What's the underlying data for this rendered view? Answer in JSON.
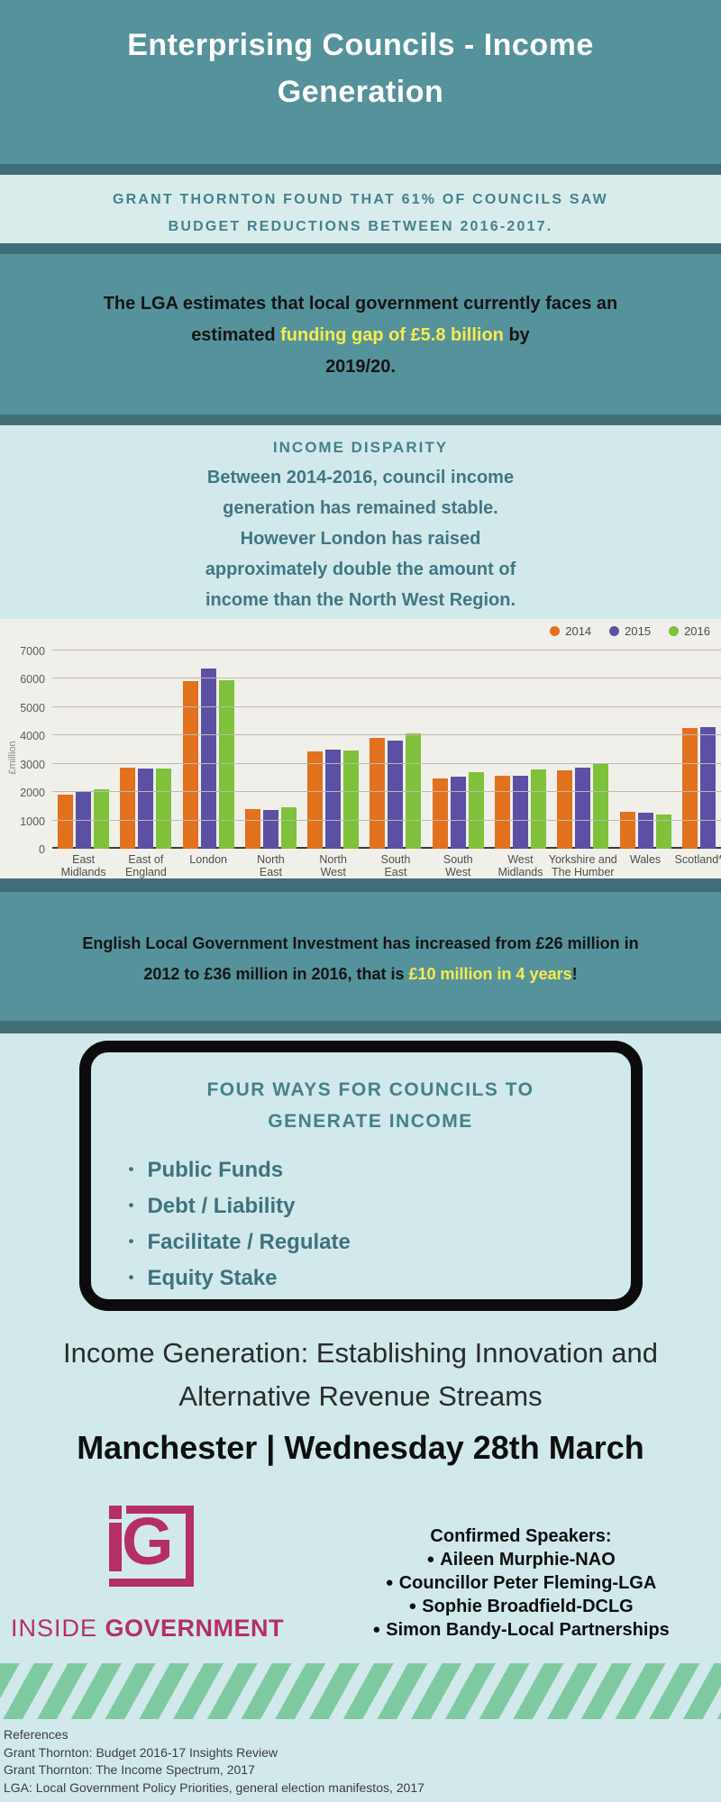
{
  "header": {
    "title": "Enterprising Councils - Income\nGeneration"
  },
  "stat_band": {
    "text": "GRANT THORNTON FOUND THAT 61% OF COUNCILS SAW\nBUDGET REDUCTIONS BETWEEN 2016-2017."
  },
  "lga": {
    "pre": "The LGA estimates that local government currently faces an\nestimated ",
    "highlight": "funding gap of £5.8 billion",
    "post": " by\n2019/20."
  },
  "disparity": {
    "heading": "INCOME DISPARITY",
    "body": "Between 2014-2016, council income\ngeneration has remained stable.\nHowever London has raised\napproximately double the amount of\nincome than the North West Region."
  },
  "chart_data": {
    "type": "bar",
    "title": "",
    "xlabel": "",
    "ylabel": "£million",
    "ylim": [
      0,
      7000
    ],
    "ytick_step": 1000,
    "grid": true,
    "legend_position": "top-right",
    "categories": [
      "East\nMidlands",
      "East of\nEngland",
      "London",
      "North\nEast",
      "North\nWest",
      "South\nEast",
      "South\nWest",
      "West\nMidlands",
      "Yorkshire and\nThe Humber",
      "Wales",
      "Scotland*"
    ],
    "series": [
      {
        "name": "2014",
        "color": "#e2711d",
        "values": [
          1900,
          2870,
          5930,
          1400,
          3450,
          3920,
          2480,
          2570,
          2760,
          1290,
          4270
        ]
      },
      {
        "name": "2015",
        "color": "#5b50a3",
        "values": [
          2000,
          2830,
          6350,
          1370,
          3500,
          3820,
          2560,
          2570,
          2870,
          1260,
          4290
        ]
      },
      {
        "name": "2016",
        "color": "#7fc13a",
        "values": [
          2100,
          2820,
          5950,
          1460,
          3480,
          4080,
          2690,
          2790,
          3000,
          1210,
          null
        ]
      }
    ],
    "note": "2016 bar for Scotland* is cut off at the right edge of the image"
  },
  "invest": {
    "pre": "English Local Government Investment has increased from £26 million in\n2012 to £36 million in 2016, that is ",
    "highlight": "£10 million in 4 years",
    "post": "!"
  },
  "box": {
    "title": "FOUR WAYS FOR COUNCILS TO\nGENERATE INCOME",
    "bullet_char": "•",
    "items": [
      "Public Funds",
      "Debt / Liability",
      "Facilitate / Regulate",
      "Equity Stake"
    ]
  },
  "event": {
    "title": "Income Generation: Establishing Innovation and\nAlternative Revenue Streams",
    "date_line": "Manchester | Wednesday 28th March"
  },
  "brand": {
    "mark_g": "G",
    "name_light": "INSIDE ",
    "name_bold": "GOVERNMENT"
  },
  "speakers": {
    "heading": "Confirmed Speakers:",
    "bullet_char": "●",
    "items": [
      "Aileen Murphie-NAO",
      "Councillor Peter Fleming-LGA",
      "Sophie Broadfield-DCLG",
      "Simon Bandy-Local Partnerships"
    ]
  },
  "references": {
    "heading": "References",
    "items": [
      "Grant Thornton: Budget 2016-17 Insights Review",
      "Grant Thornton: The Income Spectrum, 2017",
      "LGA: Local Government Policy Priorities, general election manifestos, 2017"
    ]
  },
  "colors": {
    "teal_background": "#55929b",
    "dark_divider": "#406f7a",
    "mint_band": "#d9ecec",
    "light_blue_background": "#d2e9eb",
    "chart_background": "#f1efe9",
    "teal_text": "#417683",
    "yellow_highlight": "#f8ec4c",
    "magenta_brand": "#b42f65",
    "stripe_green": "#7fc9a2",
    "bar_2014": "#e2711d",
    "bar_2015": "#5b50a3",
    "bar_2016": "#7fc13a"
  }
}
